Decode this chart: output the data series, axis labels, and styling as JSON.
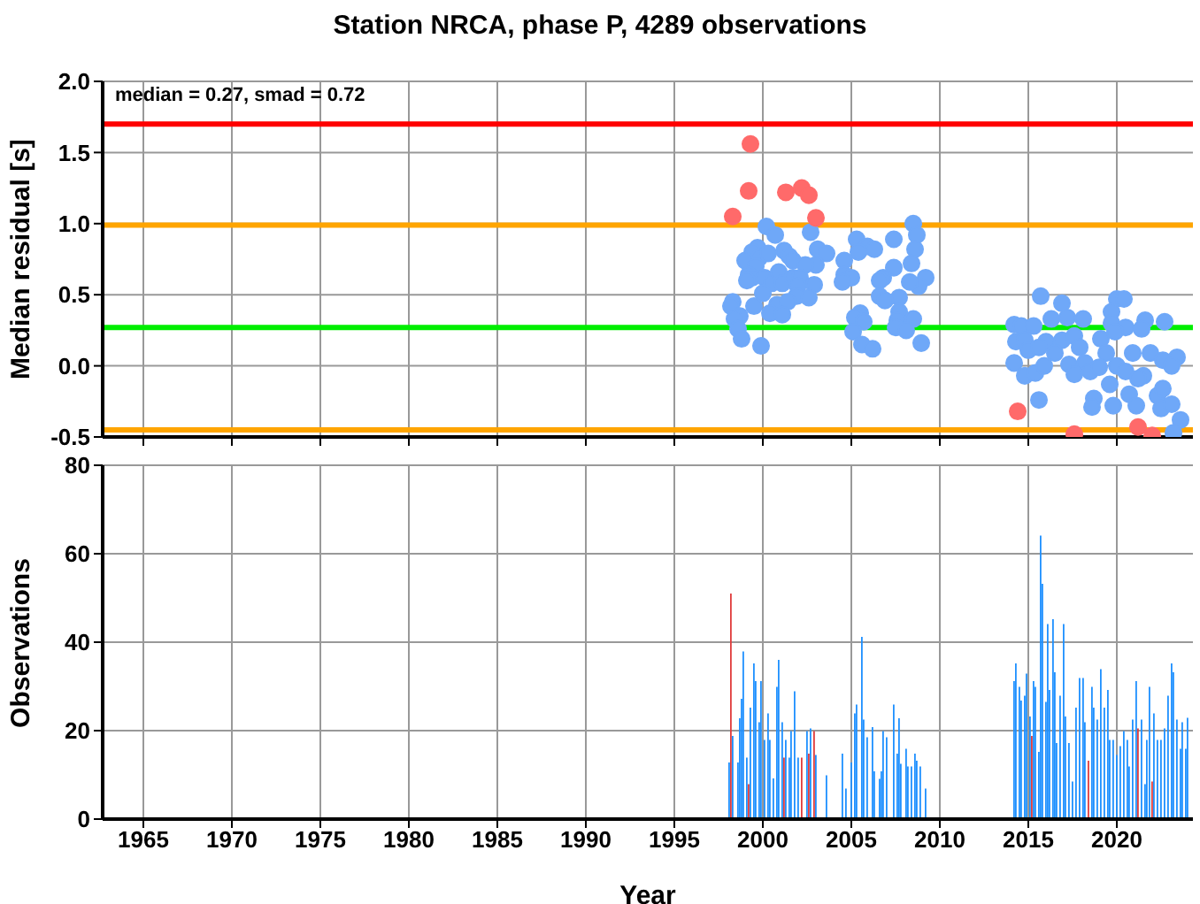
{
  "chart_data": [
    {
      "type": "scatter",
      "title": "Station NRCA, phase P, 4289 observations",
      "ylabel": "Median residual [s]",
      "annotations": [
        "median = 0.27, smad = 0.72"
      ],
      "marker": "circle",
      "grid": true,
      "tick_labels": "y",
      "xlim": [
        1962.7,
        2024.3
      ],
      "xticks": [
        1965,
        1970,
        1975,
        1980,
        1985,
        1990,
        1995,
        2000,
        2005,
        2010,
        2015,
        2020
      ],
      "ylim": [
        -0.5,
        2.0
      ],
      "yticks": [
        {
          "value": -0.5,
          "label": "-0.5"
        },
        {
          "value": 0,
          "label": "0.0"
        },
        {
          "value": 0.5,
          "label": "0.5"
        },
        {
          "value": 1,
          "label": "1.0"
        },
        {
          "value": 1.5,
          "label": "1.5"
        },
        {
          "value": 2,
          "label": "2.0"
        }
      ],
      "ref_lines": [
        {
          "axis": "y",
          "value": 1.7,
          "color": "#ff0000"
        },
        {
          "axis": "y",
          "value": 0.99,
          "color": "#ffa500"
        },
        {
          "axis": "y",
          "value": 0.27,
          "color": "#00ee00"
        },
        {
          "axis": "y",
          "value": -0.45,
          "color": "#ffa500"
        }
      ],
      "series": [
        {
          "color": "#6fa8f8",
          "x": [
            2000.2,
            2000.7,
            2002.7,
            1999.7,
            1999.4,
            1999.0,
            1999.8,
            2000.3,
            2001.2,
            2001.5,
            2001.7,
            2003.1,
            2003.6,
            2003.0,
            2002.4,
            1999.6,
            1999.2,
            1999.4,
            1999.1,
            2000.1,
            2000.5,
            2000.9,
            2001.1,
            2001.7,
            2002.1,
            2001.97,
            2002.9,
            2001.9,
            2000.0,
            2002.6,
            1998.3,
            1998.2,
            1999.5,
            2000.8,
            2001.4,
            2000.4,
            2001.1,
            1998.7,
            1998.4,
            1998.6,
            1998.8,
            1999.9,
            2004.6,
            2005.3,
            2005.9,
            2006.3,
            2005.4,
            2007.4,
            2008.5,
            2008.7,
            2008.6,
            2008.4,
            2007.4,
            2004.6,
            2005.0,
            2004.5,
            2006.8,
            2006.6,
            2009.2,
            2008.8,
            2008.3,
            2006.6,
            2007.7,
            2006.9,
            2005.5,
            2005.2,
            2005.7,
            2005.1,
            2007.7,
            2007.6,
            2008.5,
            2007.5,
            2008.1,
            2005.6,
            2006.2,
            2008.95,
            2015.7,
            2016.9,
            2020.0,
            2020.4,
            2014.2,
            2014.6,
            2015.3,
            2016.3,
            2017.2,
            2018.1,
            2019.7,
            2019.7,
            2020.5,
            2021.6,
            2022.7,
            2014.3,
            2014.8,
            2016.0,
            2016.9,
            2017.6,
            2019.1,
            2019.9,
            2021.4,
            2015.0,
            2015.6,
            2016.5,
            2017.9,
            2019.4,
            2020.9,
            2021.9,
            2014.2,
            2014.8,
            2015.4,
            2015.9,
            2017.3,
            2018.2,
            2018.5,
            2019.0,
            2020.0,
            2020.5,
            2021.5,
            2022.6,
            2023.4,
            2023.1,
            2015.6,
            2018.7,
            2018.6,
            2019.8,
            2020.7,
            2021.1,
            2022.3,
            2022.5,
            2023.1,
            2023.6,
            2023.2,
            2017.6,
            2019.6,
            2021.2,
            2022.6
          ],
          "values": [
            0.98,
            0.92,
            0.94,
            0.83,
            0.8,
            0.74,
            0.76,
            0.79,
            0.81,
            0.77,
            0.74,
            0.82,
            0.79,
            0.71,
            0.71,
            0.7,
            0.64,
            0.62,
            0.6,
            0.62,
            0.58,
            0.66,
            0.58,
            0.62,
            0.62,
            0.56,
            0.57,
            0.49,
            0.51,
            0.48,
            0.45,
            0.42,
            0.42,
            0.43,
            0.45,
            0.37,
            0.36,
            0.35,
            0.33,
            0.26,
            0.19,
            0.14,
            0.74,
            0.89,
            0.84,
            0.82,
            0.8,
            0.89,
            1.0,
            0.92,
            0.82,
            0.72,
            0.69,
            0.64,
            0.62,
            0.59,
            0.62,
            0.6,
            0.62,
            0.56,
            0.59,
            0.49,
            0.48,
            0.46,
            0.37,
            0.34,
            0.31,
            0.24,
            0.38,
            0.32,
            0.33,
            0.27,
            0.25,
            0.15,
            0.12,
            0.16,
            0.49,
            0.44,
            0.47,
            0.47,
            0.29,
            0.28,
            0.28,
            0.33,
            0.34,
            0.33,
            0.38,
            0.3,
            0.27,
            0.32,
            0.31,
            0.17,
            0.18,
            0.17,
            0.18,
            0.21,
            0.19,
            0.24,
            0.26,
            0.11,
            0.13,
            0.09,
            0.13,
            0.09,
            0.09,
            0.09,
            0.02,
            -0.07,
            -0.05,
            0.0,
            0.01,
            0.02,
            -0.04,
            -0.01,
            0.0,
            -0.04,
            -0.07,
            0.04,
            0.06,
            0.0,
            -0.24,
            -0.23,
            -0.29,
            -0.28,
            -0.2,
            -0.28,
            -0.21,
            -0.3,
            -0.27,
            -0.38,
            -0.47,
            -0.06,
            -0.13,
            -0.09,
            -0.16
          ]
        },
        {
          "color": "#ff6a6a",
          "x": [
            1999.3,
            1999.2,
            1998.3,
            2001.3,
            2002.2,
            2002.6,
            2003.0,
            2014.4,
            2017.6,
            2021.2,
            2022.0
          ],
          "values": [
            1.56,
            1.23,
            1.05,
            1.22,
            1.25,
            1.2,
            1.04,
            -0.32,
            -0.48,
            -0.43,
            -0.49
          ]
        }
      ]
    },
    {
      "type": "bar",
      "xlabel": "Year",
      "ylabel": "Observations",
      "grid": true,
      "xlim": [
        1962.7,
        2024.3
      ],
      "xticks": [
        1965,
        1970,
        1975,
        1980,
        1985,
        1990,
        1995,
        2000,
        2005,
        2010,
        2015,
        2020
      ],
      "ylim": [
        0,
        80
      ],
      "yticks": [
        0,
        20,
        40,
        60,
        80
      ],
      "x": [
        1998.1,
        1998.2,
        1998.3,
        1998.6,
        1998.7,
        1998.8,
        1998.9,
        1999.1,
        1999.2,
        1999.3,
        1999.5,
        1999.6,
        1999.8,
        1999.9,
        2000.1,
        2000.3,
        2000.4,
        2000.6,
        2000.8,
        2000.9,
        2001.1,
        2001.2,
        2001.3,
        2001.5,
        2001.6,
        2001.8,
        2002.0,
        2002.2,
        2002.5,
        2002.6,
        2002.7,
        2002.9,
        2003.0,
        2003.6,
        2004.5,
        2004.7,
        2005.0,
        2005.2,
        2005.3,
        2005.6,
        2005.7,
        2005.9,
        2006.2,
        2006.3,
        2006.6,
        2006.7,
        2006.8,
        2007.0,
        2007.4,
        2007.6,
        2007.7,
        2007.8,
        2008.1,
        2008.2,
        2008.4,
        2008.6,
        2008.7,
        2008.9,
        2009.2,
        2014.2,
        2014.3,
        2014.5,
        2014.6,
        2014.8,
        2014.9,
        2015.1,
        2015.2,
        2015.3,
        2015.4,
        2015.6,
        2015.7,
        2015.8,
        2016.0,
        2016.1,
        2016.2,
        2016.4,
        2016.5,
        2016.6,
        2016.8,
        2017.0,
        2017.1,
        2017.3,
        2017.5,
        2017.7,
        2017.9,
        2018.1,
        2018.2,
        2018.4,
        2018.6,
        2018.7,
        2018.9,
        2019.1,
        2019.3,
        2019.5,
        2019.6,
        2019.8,
        2020.0,
        2020.2,
        2020.4,
        2020.6,
        2020.7,
        2020.9,
        2021.1,
        2021.2,
        2021.4,
        2021.6,
        2021.7,
        2021.85,
        2022.0,
        2022.1,
        2022.3,
        2022.5,
        2022.7,
        2022.9,
        2023.1,
        2023.2,
        2023.4,
        2023.6,
        2023.7,
        2023.9,
        2024.0
      ],
      "values": [
        12.8,
        51,
        18.8,
        12.8,
        22.8,
        27.2,
        37.9,
        13.9,
        7.9,
        25.2,
        35.2,
        31.2,
        21.9,
        31.2,
        17.9,
        23.9,
        17.9,
        9.2,
        29.9,
        36.0,
        21.9,
        13.9,
        17.9,
        13.9,
        19.9,
        28.9,
        13.9,
        13.9,
        19.9,
        14.8,
        20.5,
        19.9,
        14.5,
        9.9,
        14.8,
        6.9,
        12.8,
        23.9,
        25.9,
        41.2,
        22.5,
        18.5,
        20.8,
        10.8,
        9.1,
        10.8,
        19.9,
        18.5,
        25.9,
        14.8,
        22.8,
        12.5,
        15.9,
        11.9,
        11.9,
        14.8,
        13.2,
        11.9,
        6.9,
        31.2,
        35.2,
        29.9,
        26.8,
        27.9,
        32.9,
        23.2,
        18.8,
        31.2,
        29.9,
        15.2,
        64.1,
        53.2,
        26.5,
        44.1,
        29.2,
        45.2,
        33.2,
        17.2,
        27.9,
        44.1,
        23.2,
        17.2,
        8.5,
        25.2,
        31.9,
        31.9,
        21.9,
        13.2,
        29.9,
        25.2,
        22.5,
        33.9,
        25.2,
        29.2,
        17.9,
        17.9,
        14.5,
        16.5,
        19.9,
        17.9,
        11.9,
        22.5,
        31.2,
        20.5,
        22.5,
        7.9,
        17.9,
        29.9,
        8.5,
        23.9,
        17.9,
        17.9,
        20.5,
        27.9,
        35.2,
        33.2,
        22.5,
        15.9,
        21.9,
        15.9,
        22.9
      ],
      "colors": [
        "#1e90ff",
        "#e03c3c",
        "#1e90ff",
        "#1e90ff",
        "#1e90ff",
        "#1e90ff",
        "#1e90ff",
        "#1e90ff",
        "#e03c3c",
        "#1e90ff",
        "#1e90ff",
        "#1e90ff",
        "#1e90ff",
        "#1e90ff",
        "#1e90ff",
        "#1e90ff",
        "#1e90ff",
        "#1e90ff",
        "#1e90ff",
        "#1e90ff",
        "#1e90ff",
        "#e03c3c",
        "#1e90ff",
        "#1e90ff",
        "#1e90ff",
        "#1e90ff",
        "#1e90ff",
        "#e03c3c",
        "#1e90ff",
        "#e03c3c",
        "#1e90ff",
        "#e03c3c",
        "#1e90ff",
        "#1e90ff",
        "#1e90ff",
        "#1e90ff",
        "#1e90ff",
        "#1e90ff",
        "#1e90ff",
        "#1e90ff",
        "#1e90ff",
        "#1e90ff",
        "#1e90ff",
        "#1e90ff",
        "#1e90ff",
        "#1e90ff",
        "#1e90ff",
        "#1e90ff",
        "#1e90ff",
        "#1e90ff",
        "#1e90ff",
        "#1e90ff",
        "#1e90ff",
        "#1e90ff",
        "#1e90ff",
        "#1e90ff",
        "#1e90ff",
        "#1e90ff",
        "#1e90ff",
        "#1e90ff",
        "#1e90ff",
        "#1e90ff",
        "#1e90ff",
        "#1e90ff",
        "#1e90ff",
        "#1e90ff",
        "#e03c3c",
        "#1e90ff",
        "#1e90ff",
        "#1e90ff",
        "#1e90ff",
        "#1e90ff",
        "#1e90ff",
        "#1e90ff",
        "#1e90ff",
        "#1e90ff",
        "#1e90ff",
        "#1e90ff",
        "#1e90ff",
        "#1e90ff",
        "#1e90ff",
        "#1e90ff",
        "#1e90ff",
        "#1e90ff",
        "#1e90ff",
        "#1e90ff",
        "#1e90ff",
        "#e03c3c",
        "#1e90ff",
        "#1e90ff",
        "#1e90ff",
        "#1e90ff",
        "#1e90ff",
        "#1e90ff",
        "#1e90ff",
        "#1e90ff",
        "#1e90ff",
        "#1e90ff",
        "#1e90ff",
        "#1e90ff",
        "#1e90ff",
        "#1e90ff",
        "#1e90ff",
        "#e03c3c",
        "#1e90ff",
        "#1e90ff",
        "#1e90ff",
        "#1e90ff",
        "#e03c3c",
        "#1e90ff",
        "#1e90ff",
        "#1e90ff",
        "#1e90ff",
        "#1e90ff",
        "#1e90ff",
        "#1e90ff",
        "#1e90ff",
        "#1e90ff",
        "#1e90ff",
        "#1e90ff",
        "#1e90ff"
      ]
    }
  ]
}
